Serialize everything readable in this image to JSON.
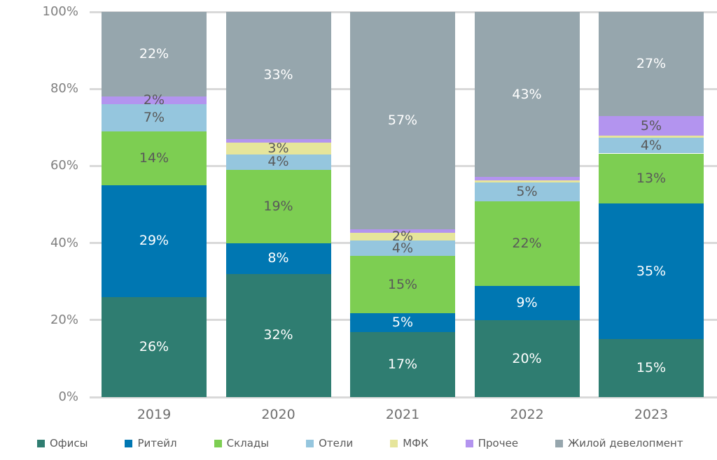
{
  "chart_data": {
    "type": "bar",
    "variant": "stacked-100",
    "title": "",
    "xlabel": "",
    "ylabel": "",
    "categories": [
      "2019",
      "2020",
      "2021",
      "2022",
      "2023"
    ],
    "series": [
      {
        "name": "Офисы",
        "color": "#2F7D71",
        "label_color": "#ffffff",
        "values": [
          26,
          32,
          17,
          20,
          15
        ],
        "labels": [
          "26%",
          "32%",
          "17%",
          "20%",
          "15%"
        ]
      },
      {
        "name": "Ритейл",
        "color": "#0077B2",
        "label_color": "#ffffff",
        "values": [
          29,
          8,
          5,
          9,
          35
        ],
        "labels": [
          "29%",
          "8%",
          "5%",
          "9%",
          "35%"
        ]
      },
      {
        "name": "Склады",
        "color": "#7DCE52",
        "label_color": "#595959",
        "values": [
          14,
          19,
          15,
          22,
          13
        ],
        "labels": [
          "14%",
          "19%",
          "15%",
          "22%",
          "13%"
        ]
      },
      {
        "name": "Отели",
        "color": "#95C6DE",
        "label_color": "#595959",
        "values": [
          7,
          4,
          4,
          5,
          4
        ],
        "labels": [
          "7%",
          "4%",
          "4%",
          "5%",
          "4%"
        ]
      },
      {
        "name": "МФК",
        "color": "#E6E59B",
        "label_color": "#595959",
        "values": [
          0,
          3,
          2,
          0.4,
          0.6
        ],
        "labels": [
          "",
          "3%",
          "2%",
          "",
          ""
        ]
      },
      {
        "name": "Прочее",
        "color": "#B394EF",
        "label_color": "#595959",
        "values": [
          2,
          1,
          1,
          1,
          5
        ],
        "labels": [
          "2%",
          "",
          "",
          "",
          "5%"
        ]
      },
      {
        "name": "Жилой девелопмент",
        "color": "#96A6AD",
        "label_color": "#ffffff",
        "values": [
          22,
          33,
          57,
          43,
          27
        ],
        "labels": [
          "22%",
          "33%",
          "57%",
          "43%",
          "27%"
        ]
      }
    ],
    "y_axis": {
      "min": 0,
      "max": 100,
      "grid": true,
      "grid_color": "#d9d9d9",
      "ticks": [
        {
          "value": 0,
          "label": "0%"
        },
        {
          "value": 20,
          "label": "20%"
        },
        {
          "value": 40,
          "label": "40%"
        },
        {
          "value": 60,
          "label": "60%"
        },
        {
          "value": 80,
          "label": "80%"
        },
        {
          "value": 100,
          "label": "100%"
        }
      ]
    },
    "legend": {
      "position": "bottom",
      "entries": [
        "Офисы",
        "Ритейл",
        "Склады",
        "Отели",
        "МФК",
        "Прочее",
        "Жилой девелопмент"
      ]
    }
  }
}
